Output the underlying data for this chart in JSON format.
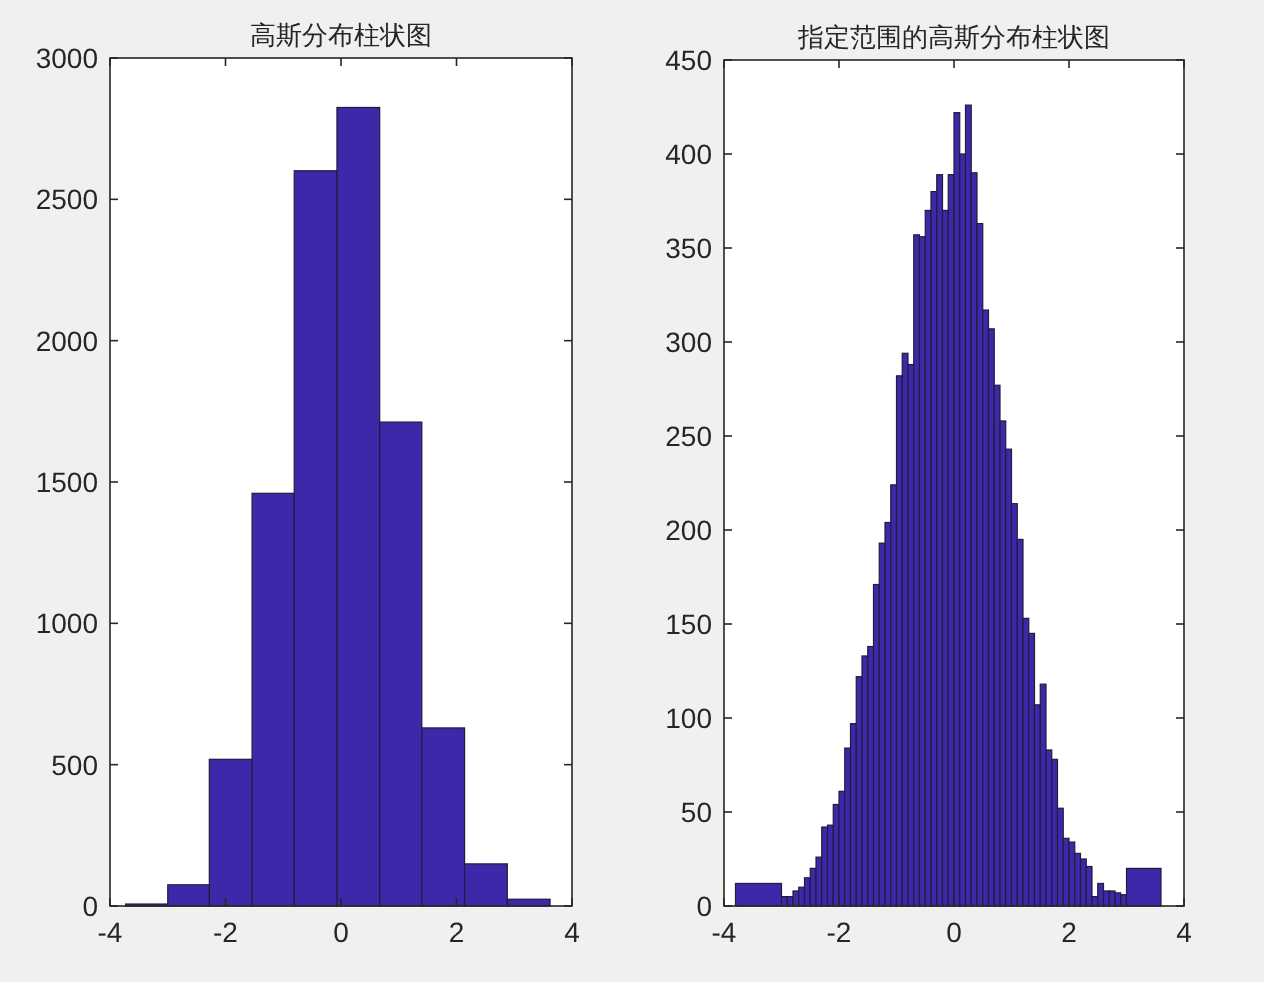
{
  "chart_data": [
    {
      "type": "histogram",
      "title": "高斯分布柱状图",
      "color": "#3c28a9",
      "bins": [
        -3.73,
        -3.0,
        -2.28,
        -1.54,
        -0.81,
        -0.07,
        0.67,
        1.4,
        2.14,
        2.88,
        3.62
      ],
      "values": [
        7,
        75,
        519,
        1460,
        2601,
        2825,
        1712,
        630,
        149,
        24
      ],
      "xlim": [
        -4,
        4
      ],
      "ylim": [
        0,
        3000
      ],
      "xticks": [
        -4,
        -2,
        0,
        2,
        4
      ],
      "yticks": [
        0,
        500,
        1000,
        1500,
        2000,
        2500,
        3000
      ]
    },
    {
      "type": "histogram",
      "title": "指定范围的高斯分布柱状图",
      "color": "#3c28a9",
      "bins": [
        -3.8,
        -3.0,
        -2.9,
        -2.8,
        -2.7,
        -2.6,
        -2.5,
        -2.4,
        -2.3,
        -2.2,
        -2.1,
        -2.0,
        -1.9,
        -1.8,
        -1.7,
        -1.6,
        -1.5,
        -1.4,
        -1.3,
        -1.2,
        -1.1,
        -1.0,
        -0.9,
        -0.8,
        -0.7,
        -0.6,
        -0.5,
        -0.4,
        -0.3,
        -0.2,
        -0.1,
        0.0,
        0.1,
        0.2,
        0.3,
        0.4,
        0.5,
        0.6,
        0.7,
        0.8,
        0.9,
        1.0,
        1.1,
        1.2,
        1.3,
        1.4,
        1.5,
        1.6,
        1.7,
        1.8,
        1.9,
        2.0,
        2.1,
        2.2,
        2.3,
        2.4,
        2.5,
        2.6,
        2.7,
        2.8,
        2.9,
        3.0,
        3.6
      ],
      "values": [
        12,
        5,
        5,
        8,
        10,
        15,
        20,
        26,
        42,
        43,
        54,
        61,
        84,
        97,
        122,
        133,
        138,
        171,
        193,
        204,
        224,
        282,
        294,
        288,
        357,
        356,
        370,
        380,
        389,
        370,
        389,
        422,
        400,
        426,
        390,
        363,
        317,
        307,
        277,
        258,
        243,
        214,
        195,
        153,
        145,
        107,
        118,
        83,
        78,
        52,
        36,
        34,
        28,
        25,
        21,
        5,
        12,
        8,
        8,
        7,
        6,
        20
      ],
      "xlim": [
        -4,
        4
      ],
      "ylim": [
        0,
        450
      ],
      "xticks": [
        -4,
        -2,
        0,
        2,
        4
      ],
      "yticks": [
        0,
        50,
        100,
        150,
        200,
        250,
        300,
        350,
        400,
        450
      ]
    }
  ]
}
